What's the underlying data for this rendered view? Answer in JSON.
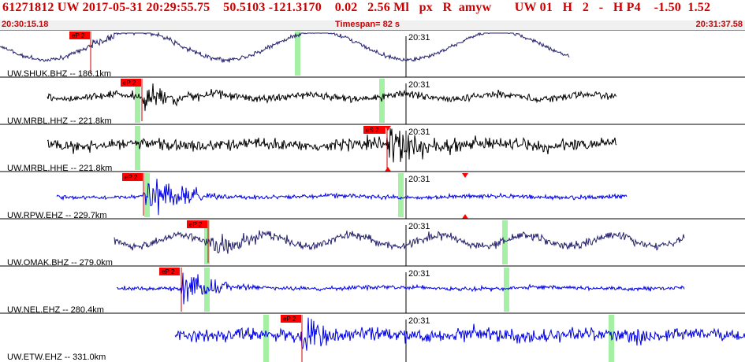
{
  "header": {
    "title": "61271812 UW 2017-05-31 20:29:55.75    50.5103 -121.3170    0.02   2.56 Ml   px   R  amyw       UW 01   H   2   -   H P4    -1.50  1.52"
  },
  "time_bar": {
    "start": "20:30:15.18",
    "timespan": "Timespan=  82 s",
    "end": "20:31:37.58"
  },
  "colors": {
    "header_text": "#cc0000",
    "trace_dark": "#23206b",
    "trace_black": "#000000",
    "trace_blue": "#0000e6",
    "pick_box": "#ff0000",
    "phase_window": "#a6f0a6",
    "separator": "#000000"
  },
  "traces": [
    {
      "label": "UW.SHUK.BHZ -- 186.1km",
      "minute_label": "20:31",
      "pick": "eP 2",
      "color": "dark"
    },
    {
      "label": "UW.MRBL.HHZ -- 221.8km",
      "minute_label": "20:31",
      "pick": "eP 2",
      "color": "black"
    },
    {
      "label": "UW.MRBL.HHE -- 221.8km",
      "minute_label": "20:31",
      "pick": "eS 2",
      "color": "black"
    },
    {
      "label": "UW.RPW.EHZ -- 229.7km",
      "minute_label": "20:31",
      "pick": "eP 2",
      "color": "blue"
    },
    {
      "label": "UW.OMAK.BHZ -- 279.0km",
      "minute_label": "20:31",
      "pick": "eP 2",
      "color": "dark"
    },
    {
      "label": "UW.NEL.EHZ -- 280.4km",
      "minute_label": "20:31",
      "pick": "eP 2",
      "color": "blue"
    },
    {
      "label": "UW.ETW.EHZ -- 331.0km",
      "minute_label": "20:31",
      "pick": "eP 2",
      "color": "blue"
    }
  ]
}
